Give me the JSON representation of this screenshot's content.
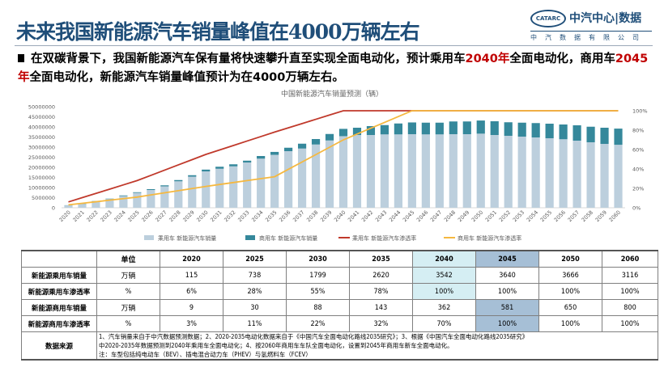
{
  "header": {
    "title": "未来我国新能源汽车销量峰值在4000万辆左右",
    "logo_badge": "CATARC",
    "logo_name": "中汽中心|数据",
    "logo_sub": "中汽数据有限公司"
  },
  "summary": {
    "p1": "在双碳背景下，我国新能源汽车保有量将快速攀升直至实现全面电动化，预计乘用车",
    "h1": "2040年",
    "p2": "全面电动化，商用车",
    "h2": "2045年",
    "p3": "全面电动化，新能源汽车销量峰值预计为在4000万辆左右。"
  },
  "colors": {
    "passenger_sales": "#bccfdd",
    "commercial_sales": "#35889b",
    "passenger_rate": "#c0392b",
    "commercial_rate": "#f5b840",
    "highlight_red": "#c00000"
  },
  "chart_data": {
    "type": "bar",
    "title": "中国新能源汽车销量预测（辆）",
    "stacked": true,
    "categories": [
      "2020",
      "2021",
      "2022",
      "2023",
      "2024",
      "2025",
      "2026",
      "2027",
      "2028",
      "2029",
      "2030",
      "2031",
      "2032",
      "2033",
      "2034",
      "2035",
      "2036",
      "2037",
      "2038",
      "2039",
      "2040",
      "2041",
      "2042",
      "2043",
      "2044",
      "2045",
      "2046",
      "2047",
      "2048",
      "2049",
      "2050",
      "2051",
      "2052",
      "2053",
      "2054",
      "2055",
      "2056",
      "2057",
      "2058",
      "2059",
      "2060"
    ],
    "ylim": [
      0,
      50000000
    ],
    "yticks": [
      "0",
      "5000000",
      "10000000",
      "15000000",
      "20000000",
      "25000000",
      "30000000",
      "35000000",
      "40000000",
      "45000000",
      "50000000"
    ],
    "y2lim": [
      0,
      100
    ],
    "y2ticks": [
      "0%",
      "20%",
      "40%",
      "60%",
      "80%",
      "100%"
    ],
    "legend_position": "bottom",
    "series": [
      {
        "name": "乘用车 新能源汽车销量",
        "type": "bar",
        "axis": "left",
        "values": [
          1150000,
          1900000,
          3100000,
          4300000,
          5800000,
          7380000,
          8800000,
          10600000,
          13100000,
          15400000,
          17990000,
          19300000,
          20500000,
          22400000,
          24300000,
          26200000,
          28000000,
          29300000,
          31300000,
          33300000,
          35420000,
          36000000,
          36000000,
          36300000,
          36300000,
          36400000,
          36300000,
          36300000,
          36400000,
          36400000,
          36660000,
          36000000,
          35600000,
          35200000,
          34800000,
          34400000,
          33900000,
          33200000,
          32400000,
          31600000,
          31160000
        ]
      },
      {
        "name": "商用车 新能源汽车销量",
        "type": "bar",
        "axis": "left",
        "values": [
          90000,
          100000,
          200000,
          200000,
          300000,
          300000,
          400000,
          500000,
          600000,
          700000,
          880000,
          1000000,
          1000000,
          900000,
          1300000,
          1430000,
          1700000,
          2400000,
          2700000,
          3200000,
          3620000,
          3600000,
          4400000,
          4600000,
          5400000,
          5810000,
          5800000,
          5800000,
          6300000,
          6300000,
          6500000,
          6800000,
          6700000,
          6900000,
          7100000,
          7200000,
          7300000,
          7600000,
          7700000,
          8000000,
          8000000
        ]
      },
      {
        "name": "乘用车 新能源汽车渗透率",
        "type": "line",
        "axis": "right",
        "values": [
          6,
          10.4,
          14.8,
          19.2,
          23.6,
          28,
          33.4,
          38.8,
          44.2,
          49.6,
          55,
          59.6,
          64.2,
          68.8,
          73.4,
          78,
          82.4,
          86.8,
          91.2,
          95.6,
          100,
          100,
          100,
          100,
          100,
          100,
          100,
          100,
          100,
          100,
          100,
          100,
          100,
          100,
          100,
          100,
          100,
          100,
          100,
          100,
          100
        ]
      },
      {
        "name": "商用车 新能源汽车渗透率",
        "type": "line",
        "axis": "right",
        "values": [
          3,
          4.6,
          6.2,
          7.8,
          9.4,
          11,
          13.2,
          15.4,
          17.6,
          19.8,
          22,
          24,
          26,
          28,
          30,
          32,
          39.6,
          47.2,
          54.8,
          62.4,
          70,
          76,
          82,
          88,
          94,
          100,
          100,
          100,
          100,
          100,
          100,
          100,
          100,
          100,
          100,
          100,
          100,
          100,
          100,
          100,
          100
        ]
      }
    ]
  },
  "table": {
    "headers": [
      "",
      "单位",
      "2020",
      "2025",
      "2030",
      "2035",
      "2040",
      "2045",
      "2050",
      "2060"
    ],
    "rows": [
      {
        "label": "新能源乘用车销量",
        "unit": "万辆",
        "values": [
          "115",
          "738",
          "1799",
          "2620",
          "3542",
          "3640",
          "3666",
          "3116"
        ]
      },
      {
        "label": "新能源乘用车渗透率",
        "unit": "%",
        "values": [
          "6%",
          "28%",
          "55%",
          "78%",
          "100%",
          "100%",
          "100%",
          "100%"
        ]
      },
      {
        "label": "新能源商用车销量",
        "unit": "万辆",
        "values": [
          "9",
          "30",
          "88",
          "143",
          "362",
          "581",
          "650",
          "800"
        ]
      },
      {
        "label": "新能源商用车渗透率",
        "unit": "%",
        "values": [
          "3%",
          "11%",
          "22%",
          "32%",
          "70%",
          "100%",
          "100%",
          "100%"
        ]
      }
    ],
    "source_label": "数据来源",
    "source_lines": [
      "1、汽车销量来自于中汽数据预测数据；2、2020-2035电动化数据来自于《中国汽车全面电动化路线2035研究》；3、根据《中国汽车全面电动化路线2035研究》",
      "中2020-2035年数据预测到2040年乘用车全面电动化；4、按2060年商用车车队全面电动化，设置到2045年商用车新车全面电动化。",
      "注：车型包括纯电动车（BEV）、插电混合动力车（PHEV）与氢燃料车（FCEV）"
    ]
  }
}
